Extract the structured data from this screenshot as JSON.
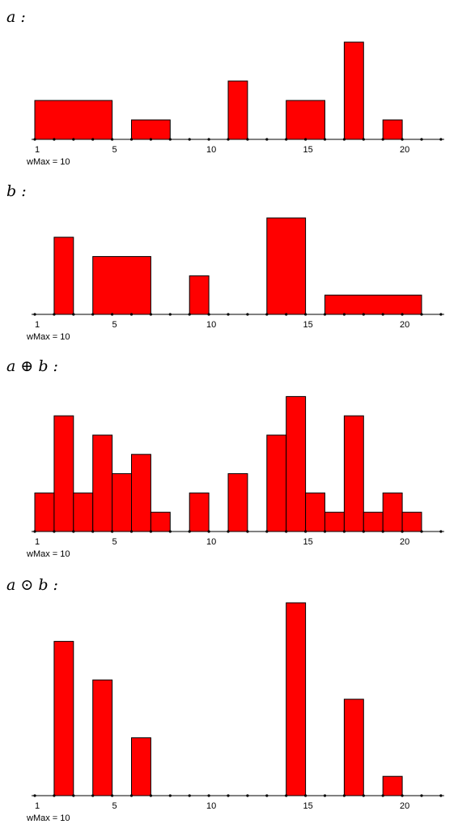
{
  "colors": {
    "bar_fill": "#ff0000",
    "bar_stroke": "#000000",
    "axis": "#000000"
  },
  "chart_data": [
    {
      "type": "bar",
      "title": "a :",
      "xlim": [
        1,
        22
      ],
      "xticks": [
        1,
        5,
        10,
        15,
        20
      ],
      "ylim": [
        0,
        10
      ],
      "wmax_label": "wMax = 10",
      "bars": [
        {
          "start": 1,
          "end": 4,
          "value": 4
        },
        {
          "start": 6,
          "end": 7,
          "value": 2
        },
        {
          "start": 11,
          "end": 11,
          "value": 6
        },
        {
          "start": 14,
          "end": 15,
          "value": 4
        },
        {
          "start": 17,
          "end": 17,
          "value": 10
        },
        {
          "start": 19,
          "end": 19,
          "value": 2
        }
      ]
    },
    {
      "type": "bar",
      "title": "b :",
      "xlim": [
        1,
        22
      ],
      "xticks": [
        1,
        5,
        10,
        15,
        20
      ],
      "ylim": [
        0,
        10
      ],
      "wmax_label": "wMax = 10",
      "bars": [
        {
          "start": 2,
          "end": 2,
          "value": 8
        },
        {
          "start": 4,
          "end": 6,
          "value": 6
        },
        {
          "start": 9,
          "end": 9,
          "value": 4
        },
        {
          "start": 13,
          "end": 14,
          "value": 10
        },
        {
          "start": 16,
          "end": 20,
          "value": 2
        }
      ]
    },
    {
      "type": "bar",
      "title": "a ⊕ b :",
      "xlim": [
        1,
        22
      ],
      "xticks": [
        1,
        5,
        10,
        15,
        20
      ],
      "ylim": [
        0,
        14
      ],
      "wmax_label": "wMax = 10",
      "bars": [
        {
          "start": 1,
          "end": 1,
          "value": 4
        },
        {
          "start": 2,
          "end": 2,
          "value": 12
        },
        {
          "start": 3,
          "end": 3,
          "value": 4
        },
        {
          "start": 4,
          "end": 4,
          "value": 10
        },
        {
          "start": 5,
          "end": 5,
          "value": 6
        },
        {
          "start": 6,
          "end": 6,
          "value": 8
        },
        {
          "start": 7,
          "end": 7,
          "value": 2
        },
        {
          "start": 9,
          "end": 9,
          "value": 4
        },
        {
          "start": 11,
          "end": 11,
          "value": 6
        },
        {
          "start": 13,
          "end": 13,
          "value": 10
        },
        {
          "start": 14,
          "end": 14,
          "value": 14
        },
        {
          "start": 15,
          "end": 15,
          "value": 4
        },
        {
          "start": 16,
          "end": 16,
          "value": 2
        },
        {
          "start": 17,
          "end": 17,
          "value": 12
        },
        {
          "start": 18,
          "end": 18,
          "value": 2
        },
        {
          "start": 19,
          "end": 19,
          "value": 4
        },
        {
          "start": 20,
          "end": 20,
          "value": 2
        }
      ]
    },
    {
      "type": "bar",
      "title": "a ⊙ b :",
      "xlim": [
        1,
        22
      ],
      "xticks": [
        1,
        5,
        10,
        15,
        20
      ],
      "ylim": [
        0,
        10
      ],
      "wmax_label": "wMax = 10",
      "bars": [
        {
          "start": 2,
          "end": 2,
          "value": 8
        },
        {
          "start": 4,
          "end": 4,
          "value": 6
        },
        {
          "start": 6,
          "end": 6,
          "value": 3
        },
        {
          "start": 14,
          "end": 14,
          "value": 10
        },
        {
          "start": 17,
          "end": 17,
          "value": 5
        },
        {
          "start": 19,
          "end": 19,
          "value": 1
        }
      ]
    }
  ]
}
